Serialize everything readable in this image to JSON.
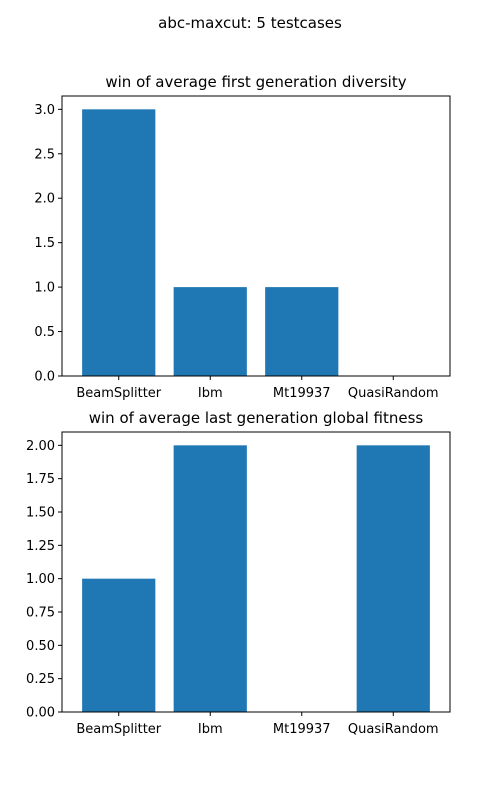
{
  "figure": {
    "suptitle": "abc-maxcut: 5 testcases"
  },
  "chart_data": [
    {
      "type": "bar",
      "title": "win of average first generation diversity",
      "xlabel": "",
      "ylabel": "",
      "categories": [
        "BeamSplitter",
        "Ibm",
        "Mt19937",
        "QuasiRandom"
      ],
      "values": [
        3,
        1,
        1,
        0
      ],
      "ylim": [
        0,
        3.15
      ],
      "yticks": [
        "0.0",
        "0.5",
        "1.0",
        "1.5",
        "2.0",
        "2.5",
        "3.0"
      ],
      "grid": false,
      "bar_color": "#1f77b4"
    },
    {
      "type": "bar",
      "title": "win of average last generation global fitness",
      "xlabel": "",
      "ylabel": "",
      "categories": [
        "BeamSplitter",
        "Ibm",
        "Mt19937",
        "QuasiRandom"
      ],
      "values": [
        1,
        2,
        0,
        2
      ],
      "ylim": [
        0,
        2.1
      ],
      "yticks": [
        "0.00",
        "0.25",
        "0.50",
        "0.75",
        "1.00",
        "1.25",
        "1.50",
        "1.75",
        "2.00"
      ],
      "grid": false,
      "bar_color": "#1f77b4"
    }
  ]
}
